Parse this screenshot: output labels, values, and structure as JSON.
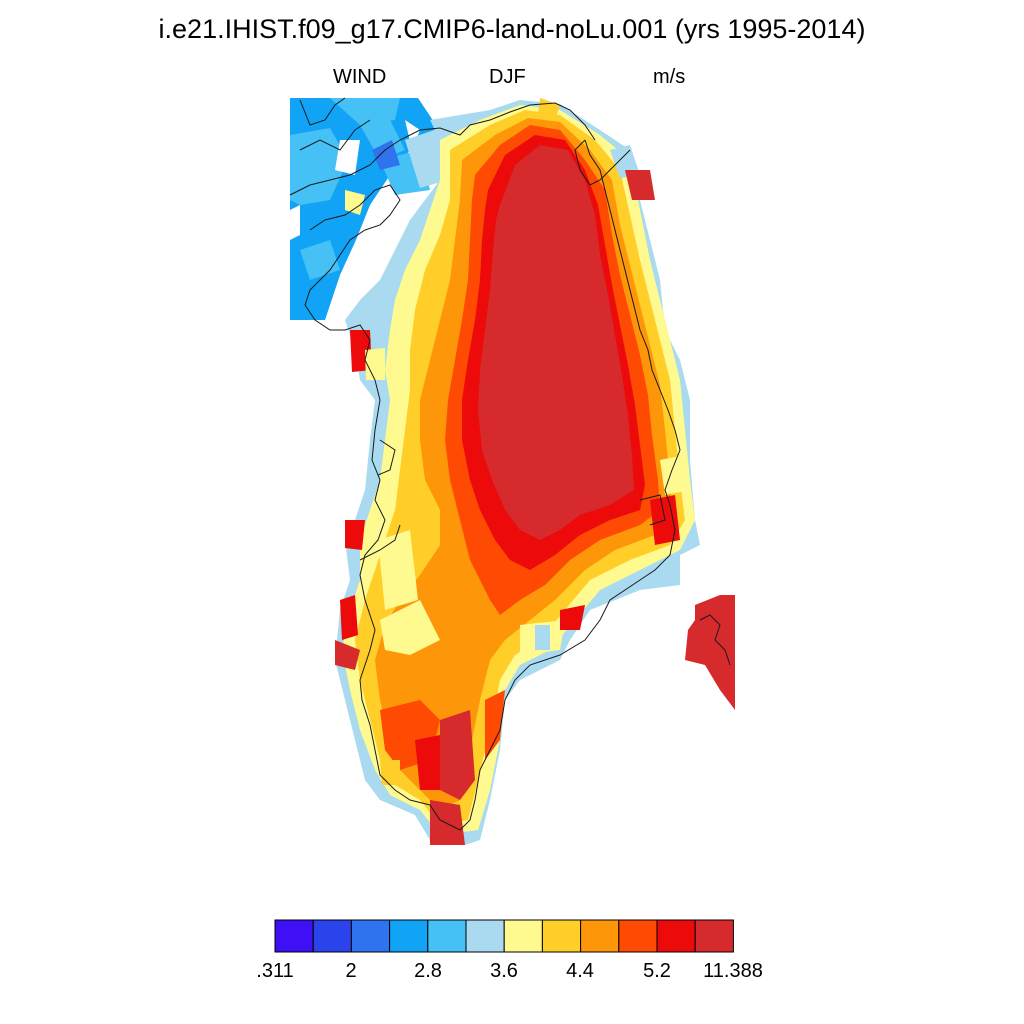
{
  "header": {
    "title": "i.e21.IHIST.f09_g17.CMIP6-land-noLu.001 (yrs 1995-2014)",
    "left": "WIND",
    "center": "DJF",
    "right": "m/s"
  },
  "colorbar": {
    "colors": [
      "#3f0ff5",
      "#2a43ea",
      "#2f74ee",
      "#11a3f6",
      "#46c1f6",
      "#a9daf0",
      "#fffa8f",
      "#ffce28",
      "#fe960a",
      "#fe4a02",
      "#ec0a0a",
      "#d62a2d"
    ],
    "labels": [
      ".311",
      "2",
      "2.8",
      "3.6",
      "4.4",
      "5.2",
      "11.388"
    ]
  }
}
